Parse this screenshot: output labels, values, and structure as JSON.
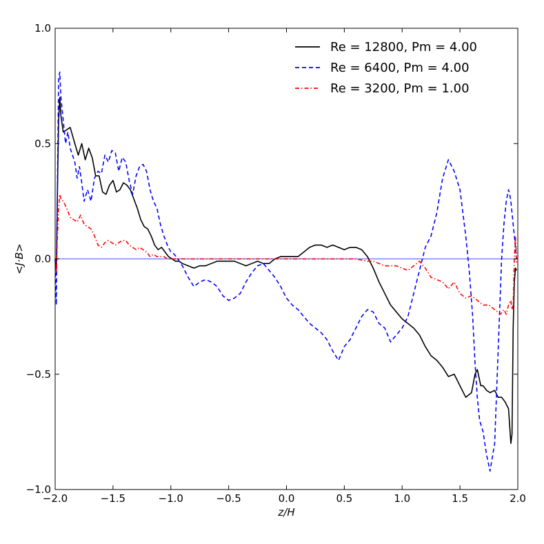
{
  "chart_data": {
    "type": "line",
    "xlabel": "z/H",
    "ylabel": "<J·B>",
    "xlim": [
      -2.0,
      2.0
    ],
    "ylim": [
      -1.0,
      1.0
    ],
    "xticks": [
      "−2.0",
      "−1.5",
      "−1.0",
      "−0.5",
      "0.0",
      "0.5",
      "1.0",
      "1.5",
      "2.0"
    ],
    "xtick_values": [
      -2.0,
      -1.5,
      -1.0,
      -0.5,
      0.0,
      0.5,
      1.0,
      1.5,
      2.0
    ],
    "yticks": [
      "−1.0",
      "−0.5",
      "0.0",
      "0.5",
      "1.0"
    ],
    "ytick_values": [
      -1.0,
      -0.5,
      0.0,
      0.5,
      1.0
    ],
    "grid": false,
    "legend_position": "top-right",
    "reference_line": {
      "y": 0.0,
      "color": "#8080ff"
    },
    "series": [
      {
        "name": "Re = 12800, Pm = 4.00",
        "color": "#000000",
        "style": "solid",
        "x": [
          -2.0,
          -1.99,
          -1.98,
          -1.97,
          -1.96,
          -1.95,
          -1.93,
          -1.9,
          -1.87,
          -1.83,
          -1.8,
          -1.77,
          -1.74,
          -1.71,
          -1.68,
          -1.65,
          -1.62,
          -1.59,
          -1.56,
          -1.53,
          -1.5,
          -1.47,
          -1.44,
          -1.41,
          -1.38,
          -1.35,
          -1.32,
          -1.29,
          -1.26,
          -1.23,
          -1.2,
          -1.17,
          -1.14,
          -1.11,
          -1.08,
          -1.05,
          -1.02,
          -0.99,
          -0.96,
          -0.93,
          -0.9,
          -0.85,
          -0.8,
          -0.75,
          -0.7,
          -0.65,
          -0.6,
          -0.55,
          -0.5,
          -0.45,
          -0.4,
          -0.35,
          -0.3,
          -0.25,
          -0.2,
          -0.15,
          -0.1,
          -0.05,
          0.0,
          0.05,
          0.1,
          0.15,
          0.2,
          0.25,
          0.3,
          0.35,
          0.4,
          0.45,
          0.5,
          0.55,
          0.6,
          0.65,
          0.7,
          0.75,
          0.8,
          0.85,
          0.9,
          0.95,
          1.0,
          1.05,
          1.1,
          1.15,
          1.2,
          1.25,
          1.3,
          1.35,
          1.4,
          1.45,
          1.5,
          1.55,
          1.6,
          1.63,
          1.65,
          1.68,
          1.7,
          1.73,
          1.76,
          1.8,
          1.83,
          1.86,
          1.89,
          1.92,
          1.94,
          1.95,
          1.96,
          1.97,
          1.98,
          1.99
        ],
        "y": [
          0.0,
          -0.05,
          0.3,
          0.6,
          0.7,
          0.62,
          0.55,
          0.56,
          0.57,
          0.5,
          0.45,
          0.5,
          0.43,
          0.48,
          0.44,
          0.36,
          0.36,
          0.29,
          0.28,
          0.32,
          0.34,
          0.29,
          0.3,
          0.33,
          0.32,
          0.3,
          0.26,
          0.22,
          0.17,
          0.14,
          0.13,
          0.1,
          0.06,
          0.04,
          0.05,
          0.03,
          0.01,
          0.0,
          -0.01,
          -0.01,
          -0.02,
          -0.03,
          -0.04,
          -0.03,
          -0.03,
          -0.02,
          -0.01,
          -0.01,
          -0.01,
          -0.01,
          -0.02,
          -0.03,
          -0.02,
          -0.01,
          -0.02,
          -0.02,
          0.0,
          0.01,
          0.01,
          0.01,
          0.01,
          0.03,
          0.05,
          0.06,
          0.06,
          0.05,
          0.06,
          0.05,
          0.04,
          0.05,
          0.05,
          0.04,
          0.01,
          -0.04,
          -0.1,
          -0.15,
          -0.2,
          -0.23,
          -0.26,
          -0.28,
          -0.3,
          -0.33,
          -0.38,
          -0.42,
          -0.44,
          -0.47,
          -0.51,
          -0.5,
          -0.55,
          -0.6,
          -0.58,
          -0.5,
          -0.48,
          -0.55,
          -0.55,
          -0.57,
          -0.58,
          -0.57,
          -0.6,
          -0.6,
          -0.62,
          -0.65,
          -0.8,
          -0.76,
          -0.3,
          -0.1,
          -0.04,
          -0.05
        ]
      },
      {
        "name": "Re = 6400, Pm = 4.00",
        "color": "#0000ff",
        "style": "dashed",
        "x": [
          -2.0,
          -1.99,
          -1.98,
          -1.97,
          -1.96,
          -1.95,
          -1.93,
          -1.91,
          -1.89,
          -1.87,
          -1.85,
          -1.83,
          -1.81,
          -1.79,
          -1.77,
          -1.75,
          -1.72,
          -1.69,
          -1.66,
          -1.63,
          -1.6,
          -1.57,
          -1.54,
          -1.51,
          -1.48,
          -1.45,
          -1.42,
          -1.39,
          -1.36,
          -1.33,
          -1.3,
          -1.27,
          -1.24,
          -1.21,
          -1.18,
          -1.15,
          -1.12,
          -1.09,
          -1.06,
          -1.03,
          -1.0,
          -0.97,
          -0.94,
          -0.9,
          -0.85,
          -0.8,
          -0.75,
          -0.7,
          -0.65,
          -0.6,
          -0.55,
          -0.5,
          -0.45,
          -0.4,
          -0.35,
          -0.3,
          -0.25,
          -0.2,
          -0.15,
          -0.1,
          -0.05,
          0.0,
          0.05,
          0.1,
          0.15,
          0.2,
          0.25,
          0.3,
          0.35,
          0.4,
          0.45,
          0.5,
          0.55,
          0.6,
          0.65,
          0.7,
          0.75,
          0.8,
          0.85,
          0.9,
          0.95,
          1.0,
          1.05,
          1.1,
          1.15,
          1.2,
          1.25,
          1.3,
          1.35,
          1.4,
          1.45,
          1.5,
          1.55,
          1.58,
          1.61,
          1.63,
          1.65,
          1.67,
          1.7,
          1.73,
          1.76,
          1.8,
          1.83,
          1.86,
          1.88,
          1.9,
          1.92,
          1.93,
          1.94,
          1.95,
          1.96,
          1.97,
          1.98,
          1.99
        ],
        "y": [
          0.0,
          -0.2,
          0.35,
          0.78,
          0.81,
          0.7,
          0.6,
          0.5,
          0.55,
          0.48,
          0.45,
          0.42,
          0.35,
          0.4,
          0.33,
          0.25,
          0.3,
          0.25,
          0.35,
          0.38,
          0.37,
          0.45,
          0.42,
          0.47,
          0.46,
          0.38,
          0.44,
          0.42,
          0.34,
          0.28,
          0.36,
          0.4,
          0.41,
          0.38,
          0.3,
          0.25,
          0.22,
          0.15,
          0.1,
          0.06,
          0.03,
          0.02,
          0.0,
          -0.03,
          -0.08,
          -0.12,
          -0.1,
          -0.09,
          -0.1,
          -0.12,
          -0.16,
          -0.18,
          -0.17,
          -0.15,
          -0.1,
          -0.06,
          -0.03,
          -0.02,
          -0.05,
          -0.08,
          -0.12,
          -0.17,
          -0.2,
          -0.22,
          -0.25,
          -0.28,
          -0.3,
          -0.32,
          -0.35,
          -0.4,
          -0.44,
          -0.38,
          -0.35,
          -0.3,
          -0.25,
          -0.22,
          -0.23,
          -0.28,
          -0.3,
          -0.36,
          -0.33,
          -0.3,
          -0.25,
          -0.15,
          -0.05,
          0.05,
          0.1,
          0.2,
          0.35,
          0.43,
          0.38,
          0.3,
          0.1,
          -0.05,
          -0.25,
          -0.45,
          -0.6,
          -0.7,
          -0.75,
          -0.85,
          -0.92,
          -0.8,
          -0.4,
          0.0,
          0.15,
          0.25,
          0.3,
          0.28,
          0.25,
          0.2,
          0.15,
          0.1,
          0.05,
          0.0
        ]
      },
      {
        "name": "Re = 3200, Pm = 1.00",
        "color": "#ff0000",
        "style": "dashdot",
        "x": [
          -2.0,
          -1.99,
          -1.98,
          -1.97,
          -1.96,
          -1.95,
          -1.93,
          -1.9,
          -1.87,
          -1.84,
          -1.81,
          -1.78,
          -1.75,
          -1.72,
          -1.69,
          -1.66,
          -1.63,
          -1.6,
          -1.57,
          -1.54,
          -1.51,
          -1.48,
          -1.45,
          -1.42,
          -1.39,
          -1.36,
          -1.33,
          -1.3,
          -1.27,
          -1.24,
          -1.21,
          -1.18,
          -1.15,
          -1.12,
          -1.09,
          -1.06,
          -1.03,
          -1.0,
          -0.97,
          -0.94,
          -0.9,
          -0.85,
          -0.8,
          -0.7,
          -0.6,
          -0.5,
          -0.4,
          -0.3,
          -0.2,
          -0.1,
          0.0,
          0.1,
          0.2,
          0.3,
          0.4,
          0.5,
          0.6,
          0.7,
          0.75,
          0.8,
          0.85,
          0.9,
          0.95,
          1.0,
          1.05,
          1.1,
          1.15,
          1.2,
          1.25,
          1.3,
          1.35,
          1.4,
          1.45,
          1.5,
          1.55,
          1.6,
          1.65,
          1.7,
          1.75,
          1.8,
          1.85,
          1.88,
          1.9,
          1.92,
          1.94,
          1.95,
          1.96,
          1.97,
          1.98,
          1.99
        ],
        "y": [
          0.0,
          -0.06,
          0.1,
          0.22,
          0.28,
          0.26,
          0.25,
          0.22,
          0.18,
          0.17,
          0.16,
          0.19,
          0.15,
          0.14,
          0.13,
          0.1,
          0.06,
          0.05,
          0.07,
          0.08,
          0.07,
          0.06,
          0.07,
          0.08,
          0.08,
          0.06,
          0.05,
          0.04,
          0.05,
          0.04,
          0.03,
          0.01,
          0.02,
          0.01,
          0.01,
          0.01,
          0.0,
          0.0,
          0.0,
          0.0,
          0.0,
          0.0,
          0.0,
          0.0,
          0.0,
          0.0,
          0.0,
          0.0,
          0.0,
          0.0,
          0.0,
          0.0,
          0.0,
          0.0,
          0.0,
          0.0,
          0.0,
          -0.01,
          -0.01,
          -0.02,
          -0.03,
          -0.03,
          -0.03,
          -0.04,
          -0.05,
          -0.03,
          -0.01,
          -0.04,
          -0.08,
          -0.09,
          -0.1,
          -0.13,
          -0.1,
          -0.15,
          -0.17,
          -0.16,
          -0.18,
          -0.2,
          -0.2,
          -0.22,
          -0.24,
          -0.22,
          -0.24,
          -0.2,
          -0.18,
          -0.22,
          -0.2,
          0.0,
          0.1,
          -0.02
        ]
      }
    ]
  }
}
